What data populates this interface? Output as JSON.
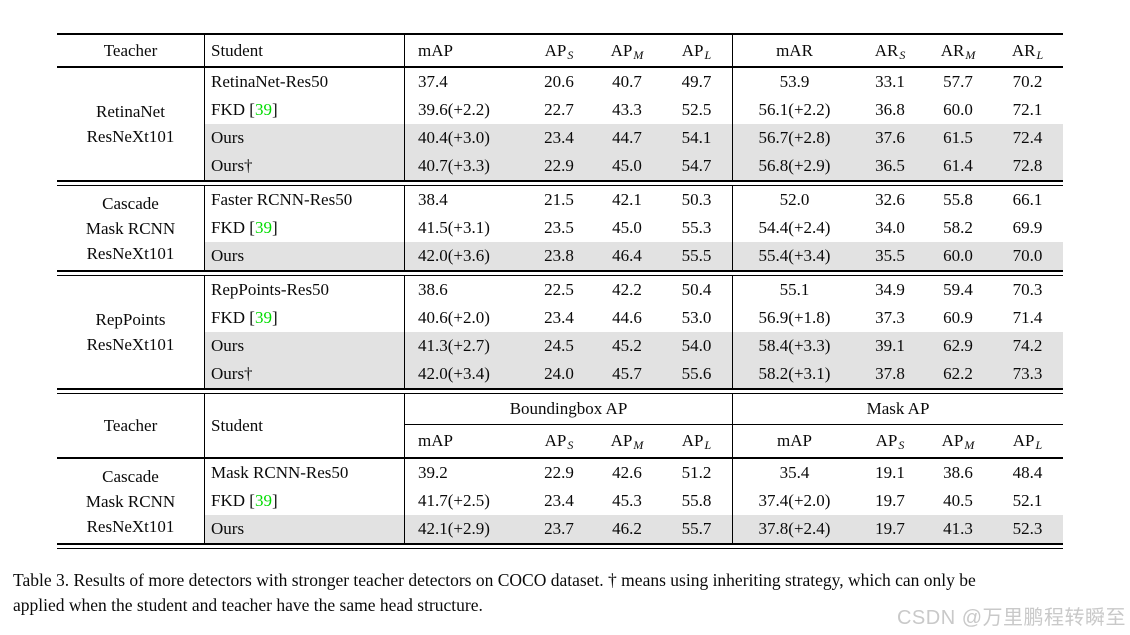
{
  "colors": {
    "citation_green": "#00dc00",
    "highlight_gray": "#e2e2e2",
    "watermark_gray": "#c9c9c9"
  },
  "caption": {
    "line1": "Table 3. Results of more detectors with stronger teacher detectors on COCO dataset. † means using inheriting strategy, which can only be",
    "line2": "applied when the student and teacher have the same head structure."
  },
  "watermark": "CSDN @万里鹏程转瞬至",
  "table1": {
    "columns": [
      {
        "key": "teacher",
        "label": "Teacher"
      },
      {
        "key": "student",
        "label": "Student"
      },
      {
        "key": "mAP",
        "label": "mAP"
      },
      {
        "key": "AP_S",
        "label": "AP",
        "sub": "S"
      },
      {
        "key": "AP_M",
        "label": "AP",
        "sub": "M"
      },
      {
        "key": "AP_L",
        "label": "AP",
        "sub": "L"
      },
      {
        "key": "mAR",
        "label": "mAR"
      },
      {
        "key": "AR_S",
        "label": "AR",
        "sub": "S"
      },
      {
        "key": "AR_M",
        "label": "AR",
        "sub": "M"
      },
      {
        "key": "AR_L",
        "label": "AR",
        "sub": "L"
      }
    ],
    "groups": [
      {
        "teacher_lines": [
          "RetinaNet",
          "ResNeXt101"
        ],
        "rows": [
          {
            "student": "RetinaNet-Res50",
            "highlight": false,
            "values": [
              "37.4",
              "20.6",
              "40.7",
              "49.7",
              "53.9",
              "33.1",
              "57.7",
              "70.2"
            ]
          },
          {
            "student": "FKD",
            "cite": "39",
            "highlight": false,
            "values": [
              "39.6(+2.2)",
              "22.7",
              "43.3",
              "52.5",
              "56.1(+2.2)",
              "36.8",
              "60.0",
              "72.1"
            ]
          },
          {
            "student": "Ours",
            "highlight": true,
            "values": [
              "40.4(+3.0)",
              "23.4",
              "44.7",
              "54.1",
              "56.7(+2.8)",
              "37.6",
              "61.5",
              "72.4"
            ]
          },
          {
            "student": "Ours†",
            "highlight": true,
            "values": [
              "40.7(+3.3)",
              "22.9",
              "45.0",
              "54.7",
              "56.8(+2.9)",
              "36.5",
              "61.4",
              "72.8"
            ]
          }
        ]
      },
      {
        "teacher_lines": [
          "Cascade",
          "Mask RCNN",
          "ResNeXt101"
        ],
        "rows": [
          {
            "student": "Faster RCNN-Res50",
            "highlight": false,
            "values": [
              "38.4",
              "21.5",
              "42.1",
              "50.3",
              "52.0",
              "32.6",
              "55.8",
              "66.1"
            ]
          },
          {
            "student": "FKD",
            "cite": "39",
            "highlight": false,
            "values": [
              "41.5(+3.1)",
              "23.5",
              "45.0",
              "55.3",
              "54.4(+2.4)",
              "34.0",
              "58.2",
              "69.9"
            ]
          },
          {
            "student": "Ours",
            "highlight": true,
            "values": [
              "42.0(+3.6)",
              "23.8",
              "46.4",
              "55.5",
              "55.4(+3.4)",
              "35.5",
              "60.0",
              "70.0"
            ]
          }
        ]
      },
      {
        "teacher_lines": [
          "RepPoints",
          "ResNeXt101"
        ],
        "rows": [
          {
            "student": "RepPoints-Res50",
            "highlight": false,
            "values": [
              "38.6",
              "22.5",
              "42.2",
              "50.4",
              "55.1",
              "34.9",
              "59.4",
              "70.3"
            ]
          },
          {
            "student": "FKD",
            "cite": "39",
            "highlight": false,
            "values": [
              "40.6(+2.0)",
              "23.4",
              "44.6",
              "53.0",
              "56.9(+1.8)",
              "37.3",
              "60.9",
              "71.4"
            ]
          },
          {
            "student": "Ours",
            "highlight": true,
            "values": [
              "41.3(+2.7)",
              "24.5",
              "45.2",
              "54.0",
              "58.4(+3.3)",
              "39.1",
              "62.9",
              "74.2"
            ]
          },
          {
            "student": "Ours†",
            "highlight": true,
            "values": [
              "42.0(+3.4)",
              "24.0",
              "45.7",
              "55.6",
              "58.2(+3.1)",
              "37.8",
              "62.2",
              "73.3"
            ]
          }
        ]
      }
    ]
  },
  "table2": {
    "teacher_label": "Teacher",
    "student_label": "Student",
    "bbox_group_label": "Boundingbox AP",
    "mask_group_label": "Mask AP",
    "columns": [
      {
        "key": "bbox_mAP",
        "label": "mAP"
      },
      {
        "key": "bbox_AP_S",
        "label": "AP",
        "sub": "S"
      },
      {
        "key": "bbox_AP_M",
        "label": "AP",
        "sub": "M"
      },
      {
        "key": "bbox_AP_L",
        "label": "AP",
        "sub": "L"
      },
      {
        "key": "mask_mAP",
        "label": "mAP"
      },
      {
        "key": "mask_AP_S",
        "label": "AP",
        "sub": "S"
      },
      {
        "key": "mask_AP_M",
        "label": "AP",
        "sub": "M"
      },
      {
        "key": "mask_AP_L",
        "label": "AP",
        "sub": "L"
      }
    ],
    "groups": [
      {
        "teacher_lines": [
          "Cascade",
          "Mask RCNN",
          "ResNeXt101"
        ],
        "rows": [
          {
            "student": "Mask RCNN-Res50",
            "highlight": false,
            "values": [
              "39.2",
              "22.9",
              "42.6",
              "51.2",
              "35.4",
              "19.1",
              "38.6",
              "48.4"
            ]
          },
          {
            "student": "FKD",
            "cite": "39",
            "highlight": false,
            "values": [
              "41.7(+2.5)",
              "23.4",
              "45.3",
              "55.8",
              "37.4(+2.0)",
              "19.7",
              "40.5",
              "52.1"
            ]
          },
          {
            "student": "Ours",
            "highlight": true,
            "values": [
              "42.1(+2.9)",
              "23.7",
              "46.2",
              "55.7",
              "37.8(+2.4)",
              "19.7",
              "41.3",
              "52.3"
            ]
          }
        ]
      }
    ]
  }
}
